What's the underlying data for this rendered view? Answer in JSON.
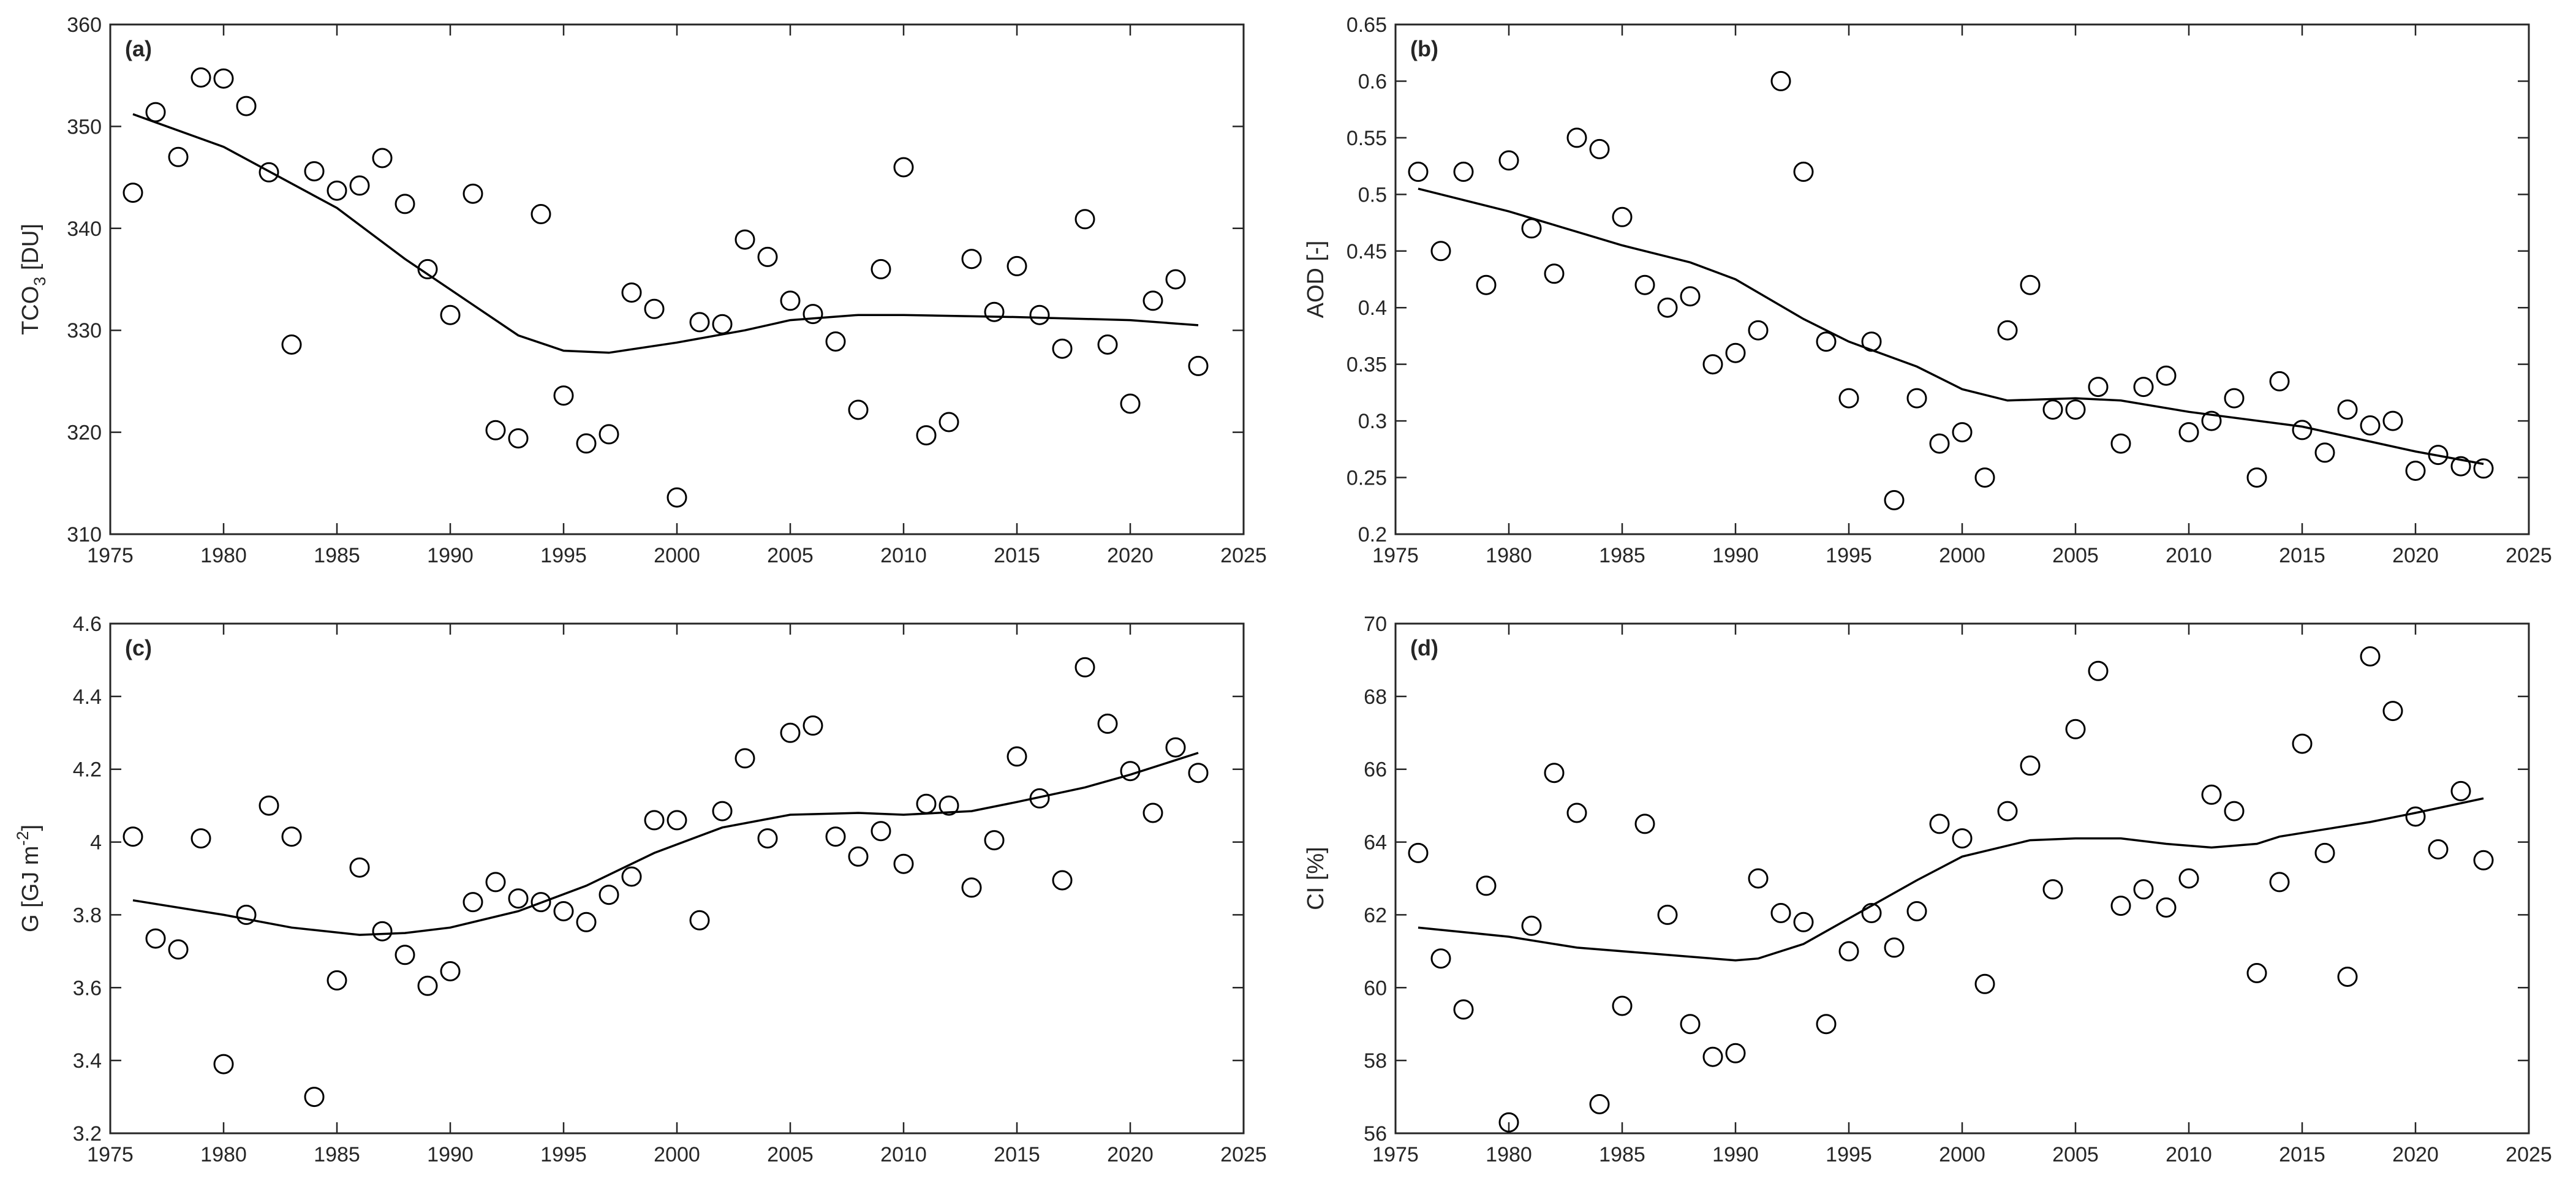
{
  "chart_data": [
    {
      "type": "scatter",
      "tag": "(a)",
      "ylabel": "TCO3 [DU]",
      "ylabel_main": "TCO",
      "ylabel_sub": "3",
      "ylabel_tail": " [DU]",
      "xlim": [
        1975,
        2025
      ],
      "ylim": [
        310,
        360
      ],
      "xticks": [
        1975,
        1980,
        1985,
        1990,
        1995,
        2000,
        2005,
        2010,
        2015,
        2020,
        2025
      ],
      "yticks": [
        310,
        320,
        330,
        340,
        350,
        360
      ],
      "ytick_labels": [
        "310",
        "320",
        "330",
        "340",
        "350",
        "360"
      ],
      "grid": false,
      "series": [
        {
          "marker": "open-circle",
          "x": [
            1976,
            1977,
            1978,
            1979,
            1980,
            1981,
            1982,
            1983,
            1984,
            1985,
            1986,
            1987,
            1988,
            1989,
            1990,
            1991,
            1992,
            1993,
            1994,
            1995,
            1996,
            1997,
            1998,
            1999,
            2000,
            2001,
            2002,
            2003,
            2004,
            2005,
            2006,
            2007,
            2008,
            2009,
            2010,
            2011,
            2012,
            2013,
            2014,
            2015,
            2016,
            2017,
            2018,
            2019,
            2020,
            2021,
            2022,
            2023
          ],
          "y": [
            343.5,
            351.4,
            347,
            354.8,
            354.7,
            352,
            345.5,
            328.6,
            345.6,
            343.7,
            344.2,
            346.9,
            342.4,
            336,
            331.5,
            343.4,
            320.2,
            319.4,
            341.4,
            323.6,
            318.9,
            319.8,
            333.7,
            332.1,
            313.6,
            330.8,
            330.6,
            338.9,
            337.2,
            332.9,
            331.6,
            328.9,
            322.2,
            336,
            346,
            319.7,
            321,
            337,
            331.8,
            336.3,
            331.5,
            328.2,
            340.9,
            328.6,
            322.8,
            332.9,
            335,
            326.5
          ]
        },
        {
          "style": "trend-line",
          "x": [
            1976,
            1980,
            1985,
            1988,
            1990,
            1993,
            1995,
            1997,
            2000,
            2003,
            2005,
            2008,
            2010,
            2015,
            2020,
            2023
          ],
          "y": [
            351.2,
            348,
            342,
            337,
            334,
            329.5,
            328,
            327.8,
            328.8,
            330,
            331,
            331.5,
            331.5,
            331.3,
            331,
            330.5
          ]
        }
      ]
    },
    {
      "type": "scatter",
      "tag": "(b)",
      "ylabel": "AOD [-]",
      "xlim": [
        1975,
        2025
      ],
      "ylim": [
        0.2,
        0.65
      ],
      "xticks": [
        1975,
        1980,
        1985,
        1990,
        1995,
        2000,
        2005,
        2010,
        2015,
        2020,
        2025
      ],
      "yticks": [
        0.2,
        0.25,
        0.3,
        0.35,
        0.4,
        0.45,
        0.5,
        0.55,
        0.6,
        0.65
      ],
      "ytick_labels": [
        "0.2",
        "0.25",
        "0.3",
        "0.35",
        "0.4",
        "0.45",
        "0.5",
        "0.55",
        "0.6",
        "0.65"
      ],
      "grid": false,
      "series": [
        {
          "marker": "open-circle",
          "x": [
            1976,
            1977,
            1978,
            1979,
            1980,
            1981,
            1982,
            1983,
            1984,
            1985,
            1986,
            1987,
            1988,
            1989,
            1990,
            1991,
            1992,
            1993,
            1994,
            1995,
            1996,
            1997,
            1998,
            1999,
            2000,
            2001,
            2002,
            2003,
            2004,
            2005,
            2006,
            2007,
            2008,
            2009,
            2010,
            2011,
            2012,
            2013,
            2014,
            2015,
            2016,
            2017,
            2018,
            2019,
            2020,
            2021,
            2022,
            2023
          ],
          "y": [
            0.52,
            0.45,
            0.52,
            0.42,
            0.53,
            0.47,
            0.43,
            0.55,
            0.54,
            0.48,
            0.42,
            0.4,
            0.41,
            0.35,
            0.36,
            0.38,
            0.6,
            0.52,
            0.37,
            0.32,
            0.37,
            0.23,
            0.32,
            0.28,
            0.29,
            0.25,
            0.38,
            0.42,
            0.31,
            0.31,
            0.33,
            0.28,
            0.33,
            0.34,
            0.29,
            0.3,
            0.32,
            0.25,
            0.335,
            0.292,
            0.272,
            0.31,
            0.296,
            0.3,
            0.256,
            0.27,
            0.26,
            0.258
          ]
        },
        {
          "style": "trend-line",
          "x": [
            1976,
            1980,
            1985,
            1988,
            1990,
            1993,
            1995,
            1998,
            2000,
            2002,
            2005,
            2007,
            2010,
            2015,
            2020,
            2023
          ],
          "y": [
            0.505,
            0.485,
            0.455,
            0.44,
            0.425,
            0.39,
            0.37,
            0.348,
            0.328,
            0.318,
            0.32,
            0.318,
            0.308,
            0.295,
            0.273,
            0.262
          ]
        }
      ]
    },
    {
      "type": "scatter",
      "tag": "(c)",
      "ylabel": "G [GJ m-2]",
      "ylabel_main": "G [GJ m",
      "ylabel_sup": "-2",
      "ylabel_tail": "]",
      "xlim": [
        1975,
        2025
      ],
      "ylim": [
        3.2,
        4.6
      ],
      "xticks": [
        1975,
        1980,
        1985,
        1990,
        1995,
        2000,
        2005,
        2010,
        2015,
        2020,
        2025
      ],
      "yticks": [
        3.2,
        3.4,
        3.6,
        3.8,
        4.0,
        4.2,
        4.4,
        4.6
      ],
      "ytick_labels": [
        "3.2",
        "3.4",
        "3.6",
        "3.8",
        "4",
        "4.2",
        "4.4",
        "4.6"
      ],
      "grid": false,
      "series": [
        {
          "marker": "open-circle",
          "x": [
            1976,
            1977,
            1978,
            1979,
            1980,
            1981,
            1982,
            1983,
            1984,
            1985,
            1986,
            1987,
            1988,
            1989,
            1990,
            1991,
            1992,
            1993,
            1994,
            1995,
            1996,
            1997,
            1998,
            1999,
            2000,
            2001,
            2002,
            2003,
            2004,
            2005,
            2006,
            2007,
            2008,
            2009,
            2010,
            2011,
            2012,
            2013,
            2014,
            2015,
            2016,
            2017,
            2018,
            2019,
            2020,
            2021,
            2022,
            2023
          ],
          "y": [
            4.015,
            3.735,
            3.705,
            4.01,
            3.39,
            3.8,
            4.1,
            4.015,
            3.3,
            3.62,
            3.93,
            3.755,
            3.69,
            3.605,
            3.645,
            3.835,
            3.89,
            3.845,
            3.835,
            3.81,
            3.78,
            3.855,
            3.905,
            4.06,
            4.06,
            3.785,
            4.085,
            4.23,
            4.01,
            4.3,
            4.32,
            4.015,
            3.96,
            4.03,
            3.94,
            4.105,
            4.1,
            3.875,
            4.005,
            4.235,
            4.12,
            3.895,
            4.48,
            4.325,
            4.195,
            4.08,
            4.26,
            4.19
          ]
        },
        {
          "style": "trend-line",
          "x": [
            1976,
            1980,
            1983,
            1986,
            1988,
            1990,
            1993,
            1996,
            1999,
            2002,
            2005,
            2008,
            2010,
            2013,
            2015,
            2018,
            2020,
            2023
          ],
          "y": [
            3.84,
            3.8,
            3.765,
            3.745,
            3.75,
            3.765,
            3.81,
            3.88,
            3.97,
            4.04,
            4.075,
            4.08,
            4.075,
            4.085,
            4.11,
            4.15,
            4.185,
            4.245
          ]
        }
      ]
    },
    {
      "type": "scatter",
      "tag": "(d)",
      "ylabel": "CI [%]",
      "xlim": [
        1975,
        2025
      ],
      "ylim": [
        56,
        70
      ],
      "xticks": [
        1975,
        1980,
        1985,
        1990,
        1995,
        2000,
        2005,
        2010,
        2015,
        2020,
        2025
      ],
      "yticks": [
        56,
        58,
        60,
        62,
        64,
        66,
        68,
        70
      ],
      "ytick_labels": [
        "56",
        "58",
        "60",
        "62",
        "64",
        "66",
        "68",
        "70"
      ],
      "grid": false,
      "series": [
        {
          "marker": "open-circle",
          "x": [
            1976,
            1977,
            1978,
            1979,
            1980,
            1981,
            1982,
            1983,
            1984,
            1985,
            1986,
            1987,
            1988,
            1989,
            1990,
            1991,
            1992,
            1993,
            1994,
            1995,
            1996,
            1997,
            1998,
            1999,
            2000,
            2001,
            2002,
            2003,
            2004,
            2005,
            2006,
            2007,
            2008,
            2009,
            2010,
            2011,
            2012,
            2013,
            2014,
            2015,
            2016,
            2017,
            2018,
            2019,
            2020,
            2021,
            2022,
            2023
          ],
          "y": [
            63.7,
            60.8,
            59.4,
            62.8,
            56.3,
            61.7,
            65.9,
            64.8,
            56.8,
            59.5,
            64.5,
            62,
            59,
            58.1,
            58.2,
            63,
            62.05,
            61.8,
            59,
            61,
            62.05,
            61.1,
            62.1,
            64.5,
            64.1,
            60.1,
            64.85,
            66.1,
            62.7,
            67.1,
            68.7,
            62.25,
            62.7,
            62.2,
            63,
            65.3,
            64.85,
            60.4,
            62.9,
            66.7,
            63.7,
            60.3,
            69.1,
            67.6,
            64.7,
            63.8,
            65.4,
            63.5
          ]
        },
        {
          "style": "trend-line",
          "x": [
            1976,
            1980,
            1983,
            1986,
            1988,
            1990,
            1991,
            1993,
            1995,
            1998,
            2000,
            2003,
            2005,
            2007,
            2009,
            2011,
            2013,
            2014,
            2016,
            2018,
            2020,
            2023
          ],
          "y": [
            61.65,
            61.4,
            61.1,
            60.95,
            60.85,
            60.75,
            60.8,
            61.2,
            61.9,
            62.95,
            63.6,
            64.05,
            64.1,
            64.1,
            63.95,
            63.85,
            63.95,
            64.15,
            64.35,
            64.55,
            64.8,
            65.2
          ]
        }
      ]
    }
  ]
}
